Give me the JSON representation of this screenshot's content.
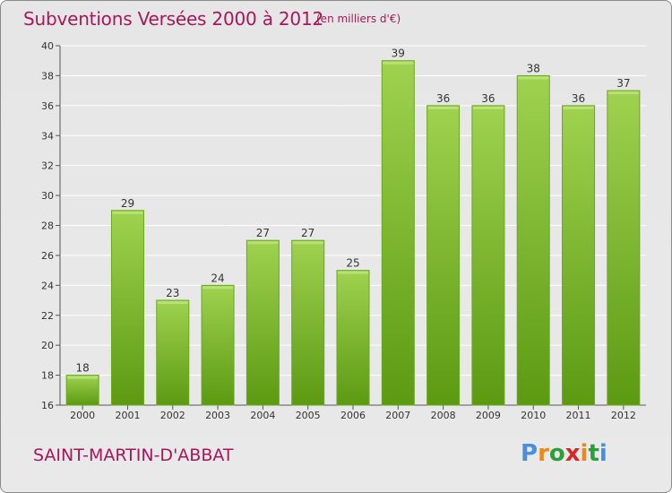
{
  "header": {
    "title": "Subventions Versées 2000 à 2012",
    "unit": "(en milliers d'€)"
  },
  "footer": {
    "commune": "SAINT-MARTIN-D'ABBAT",
    "logo_letters": [
      "P",
      "r",
      "o",
      "x",
      "i",
      "t",
      "i"
    ],
    "logo_colors": [
      "#4a90d9",
      "#e88a1a",
      "#2e9e3a",
      "#d62828",
      "#e88a1a",
      "#2e9e3a",
      "#4a90d9"
    ]
  },
  "colors": {
    "title": "#a8165b",
    "bar_light": "#9fd24f",
    "bar_dark": "#5c9a12",
    "grid": "#ffffff"
  },
  "chart_data": {
    "type": "bar",
    "categories": [
      "2000",
      "2001",
      "2002",
      "2003",
      "2004",
      "2005",
      "2006",
      "2007",
      "2008",
      "2009",
      "2010",
      "2011",
      "2012"
    ],
    "values": [
      18,
      29,
      23,
      24,
      27,
      27,
      25,
      39,
      36,
      36,
      38,
      36,
      37
    ],
    "ylim": [
      16,
      40
    ],
    "yticks": [
      16,
      18,
      20,
      22,
      24,
      26,
      28,
      30,
      32,
      34,
      36,
      38,
      40
    ],
    "grid": true,
    "xlabel": "",
    "ylabel": ""
  }
}
